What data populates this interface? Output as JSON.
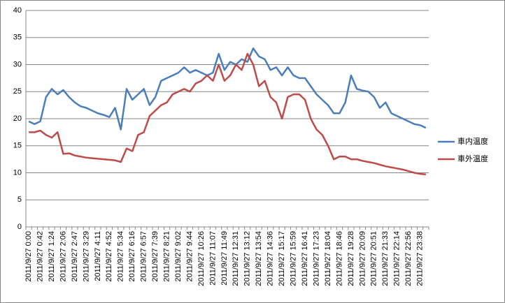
{
  "chart_data": {
    "type": "line",
    "categories": [
      "2011/9/27 0:00",
      null,
      "2011/9/27 0:42",
      null,
      "2011/9/27 1:24",
      null,
      "2011/9/27 2:06",
      null,
      "2011/9/27 2:47",
      null,
      "2011/9/27 3:29",
      null,
      "2011/9/27 4:11",
      null,
      "2011/9/27 4:52",
      null,
      "2011/9/27 5:34",
      null,
      "2011/9/27 6:16",
      null,
      "2011/9/27 6:57",
      null,
      "2011/9/27 7:39",
      null,
      "2011/9/27 8:21",
      null,
      "2011/9/27 9:02",
      null,
      "2011/9/27 9:44",
      null,
      "2011/9/27 10:26",
      null,
      "2011/9/27 11:07",
      null,
      "2011/9/27 11:49",
      null,
      "2011/9/27 12:31",
      null,
      "2011/9/27 13:12",
      null,
      "2011/9/27 13:54",
      null,
      "2011/9/27 14:36",
      null,
      "2011/9/27 15:17",
      null,
      "2011/9/27 15:59",
      null,
      "2011/9/27 16:41",
      null,
      "2011/9/27 17:23",
      null,
      "2011/9/27 18:04",
      null,
      "2011/9/27 18:46",
      null,
      "2011/9/27 19:28",
      null,
      "2011/9/27 20:09",
      null,
      "2011/9/27 20:51",
      null,
      "2011/9/27 21:33",
      null,
      "2011/9/27 22:14",
      null,
      "2011/9/27 22:56",
      null,
      "2011/9/27 23:38",
      null
    ],
    "series": [
      {
        "name": "車内温度",
        "color": "#4a7ebb",
        "values": [
          19.5,
          19,
          19.5,
          24,
          25.5,
          24.5,
          25.3,
          24,
          23,
          22.3,
          22,
          21.5,
          21,
          20.7,
          20.3,
          22,
          18,
          25.5,
          23.5,
          24.5,
          25.5,
          22.5,
          24,
          27,
          27.5,
          28,
          28.5,
          29.5,
          28.5,
          29,
          28.5,
          28,
          28.5,
          32,
          29,
          30.5,
          30,
          31,
          30.5,
          33,
          31.5,
          31,
          29,
          29.5,
          28,
          29.5,
          28,
          27.5,
          27.5,
          26,
          24.5,
          23.5,
          22.5,
          21,
          21,
          23,
          28,
          25.5,
          25.2,
          25,
          24,
          22,
          23,
          21,
          20.5,
          20,
          19.5,
          19,
          18.8,
          18.3
        ]
      },
      {
        "name": "車外温度",
        "color": "#be4b48",
        "values": [
          17.5,
          17.5,
          17.8,
          17,
          16.5,
          17.5,
          13.5,
          13.6,
          13.2,
          13,
          12.8,
          12.7,
          12.6,
          12.5,
          12.4,
          12.3,
          12,
          14.5,
          14,
          17,
          17.5,
          20.5,
          21.5,
          22.5,
          23,
          24.5,
          25,
          25.5,
          25,
          26.5,
          27,
          28,
          27,
          30,
          27,
          28,
          30,
          29,
          32,
          30,
          26,
          27,
          24,
          23,
          20,
          24,
          24.5,
          24.5,
          23.5,
          20,
          18,
          17,
          15,
          12.5,
          13,
          13,
          12.5,
          12.5,
          12.2,
          12,
          11.8,
          11.5,
          11.2,
          11,
          10.8,
          10.6,
          10.3,
          10,
          9.8,
          9.7
        ]
      }
    ],
    "ylim": [
      0,
      40
    ],
    "yticks": [
      0,
      5,
      10,
      15,
      20,
      25,
      30,
      35,
      40
    ],
    "grid": true,
    "legend": "right"
  }
}
